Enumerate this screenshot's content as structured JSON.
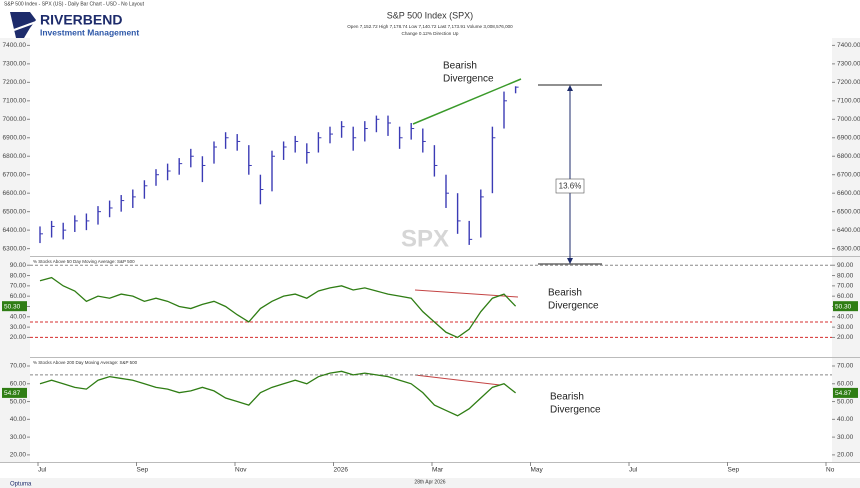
{
  "header": {
    "source_line": "S&P 500 Index - SPX (US) - Daily Bar Chart - USD - No Layout",
    "logo_name": "RIVERBEND",
    "logo_tagline": "Investment Management"
  },
  "chart_data": [
    {
      "type": "ohlc",
      "title": "S&P 500 Index (SPX)",
      "subtitle": "Open 7,152.72   High 7,178.74   Low 7,140.72   Last 7,173.91   Volume 3,008,576,000",
      "subtitle2": "Change 0.12%   Direction Up",
      "watermark": "SPX",
      "color": "#3b3bb5",
      "values": [
        6380,
        6420,
        6400,
        6450,
        6450,
        6500,
        6520,
        6560,
        6580,
        6640,
        6700,
        6720,
        6760,
        6800,
        6750,
        6850,
        6900,
        6880,
        6750,
        6620,
        6800,
        6850,
        6880,
        6820,
        6900,
        6920,
        6960,
        6900,
        6950,
        7000,
        6980,
        6900,
        6950,
        6880,
        6750,
        6600,
        6450,
        6350,
        6580,
        6900,
        7100,
        7173.91
      ],
      "highs": [
        6420,
        6450,
        6440,
        6480,
        6490,
        6530,
        6560,
        6590,
        6620,
        6670,
        6730,
        6760,
        6790,
        6840,
        6800,
        6880,
        6930,
        6920,
        6860,
        6700,
        6830,
        6880,
        6910,
        6870,
        6930,
        6960,
        6990,
        6960,
        6990,
        7020,
        7020,
        6960,
        6980,
        6950,
        6860,
        6700,
        6600,
        6450,
        6620,
        6960,
        7150,
        7178.74
      ],
      "lows": [
        6330,
        6360,
        6350,
        6390,
        6400,
        6430,
        6470,
        6500,
        6520,
        6570,
        6640,
        6670,
        6700,
        6740,
        6660,
        6760,
        6840,
        6830,
        6700,
        6540,
        6610,
        6780,
        6820,
        6760,
        6820,
        6870,
        6900,
        6830,
        6880,
        6930,
        6910,
        6840,
        6890,
        6820,
        6690,
        6520,
        6380,
        6320,
        6360,
        6600,
        6950,
        7140.72
      ],
      "ylim": [
        6260,
        7440
      ],
      "yticks": [
        {
          "value": 6300,
          "label": "6300.00"
        },
        {
          "value": 6400,
          "label": "6400.00"
        },
        {
          "value": 6500,
          "label": "6500.00"
        },
        {
          "value": 6600,
          "label": "6600.00"
        },
        {
          "value": 6700,
          "label": "6700.00"
        },
        {
          "value": 6800,
          "label": "6800.00"
        },
        {
          "value": 6900,
          "label": "6900.00"
        },
        {
          "value": 7000,
          "label": "7000.00"
        },
        {
          "value": 7100,
          "label": "7100.00"
        },
        {
          "value": 7200,
          "label": "7200.00"
        },
        {
          "value": 7300,
          "label": "7300.00"
        },
        {
          "value": 7400,
          "label": "7400.00"
        }
      ],
      "annotation": [
        "Bearish",
        "Divergence"
      ],
      "measure_label": "13.6%"
    },
    {
      "type": "line",
      "title": "% Stocks Above 50 Day Moving Average: S&P 500",
      "series": [
        {
          "color": "#2f7d14",
          "values": [
            75,
            78,
            70,
            65,
            55,
            60,
            58,
            62,
            60,
            55,
            58,
            55,
            50,
            48,
            52,
            55,
            50,
            42,
            35,
            48,
            55,
            60,
            62,
            58,
            65,
            68,
            70,
            66,
            68,
            65,
            62,
            60,
            58,
            45,
            35,
            25,
            20,
            28,
            45,
            58,
            62,
            50.3
          ]
        }
      ],
      "current_label": "50.30",
      "ylim": [
        2,
        97
      ],
      "yticks": [
        {
          "value": 20,
          "label": "20.00"
        },
        {
          "value": 30,
          "label": "30.00"
        },
        {
          "value": 40,
          "label": "40.00"
        },
        {
          "value": 50,
          "label": "50.00"
        },
        {
          "value": 60,
          "label": "60.00"
        },
        {
          "value": 70,
          "label": "70.00"
        },
        {
          "value": 80,
          "label": "80.00"
        },
        {
          "value": 90,
          "label": "90.00"
        }
      ],
      "ref_lines": [
        {
          "value": 90,
          "color": "#888888"
        },
        {
          "value": 35,
          "color": "#d62f2f"
        },
        {
          "value": 20,
          "color": "#d62f2f"
        }
      ],
      "annotation": [
        "Bearish",
        "Divergence"
      ]
    },
    {
      "type": "line",
      "title": "% Stocks Above 200 Day Moving Average: S&P 500",
      "series": [
        {
          "color": "#2f7d14",
          "values": [
            60,
            62,
            60,
            58,
            57,
            62,
            64,
            63,
            62,
            60,
            58,
            57,
            55,
            56,
            58,
            56,
            52,
            50,
            48,
            55,
            58,
            60,
            62,
            60,
            64,
            66,
            67,
            65,
            66,
            65,
            64,
            62,
            60,
            55,
            48,
            45,
            42,
            46,
            52,
            58,
            60,
            54.87
          ]
        }
      ],
      "current_label": "54.87",
      "ylim": [
        16,
        74.5
      ],
      "yticks": [
        {
          "value": 20,
          "label": "20.00"
        },
        {
          "value": 30,
          "label": "30.00"
        },
        {
          "value": 40,
          "label": "40.00"
        },
        {
          "value": 50,
          "label": "50.00"
        },
        {
          "value": 60,
          "label": "60.00"
        },
        {
          "value": 70,
          "label": "70.00"
        }
      ],
      "ref_lines": [
        {
          "value": 65,
          "color": "#888888"
        }
      ],
      "annotation": [
        "Bearish",
        "Divergence"
      ]
    }
  ],
  "x_axis": {
    "labels": [
      "Jul",
      "Sep",
      "Nov",
      "2026",
      "Mar",
      "May",
      "Jul",
      "Sep",
      "No"
    ],
    "date": "28th Apr 2026",
    "brand": "Optuma"
  }
}
